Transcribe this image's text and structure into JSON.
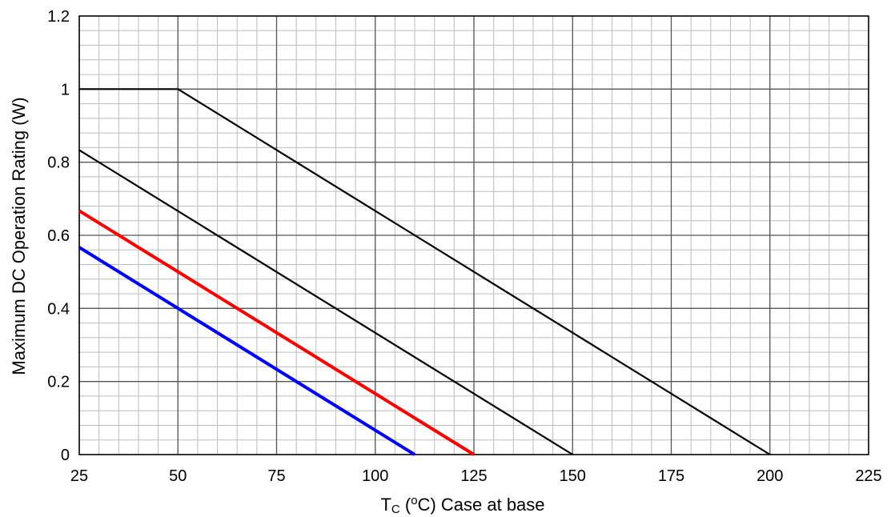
{
  "chart_data": {
    "type": "line",
    "xlabel": {
      "main": "T",
      "sub": "C",
      "open": " (",
      "sup": "o",
      "rest": "C) Case at base"
    },
    "ylabel": "Maximum DC Operation Rating (W)",
    "xlim": [
      25,
      225
    ],
    "ylim": [
      0,
      1.2
    ],
    "x_ticks": [
      25,
      50,
      75,
      100,
      125,
      150,
      175,
      200,
      225
    ],
    "y_ticks": [
      0,
      0.2,
      0.4,
      0.6,
      0.8,
      1,
      1.2
    ],
    "x_tick_labels": [
      "25",
      "50",
      "75",
      "100",
      "125",
      "150",
      "175",
      "200",
      "225"
    ],
    "y_tick_labels": [
      "0",
      "0.2",
      "0.4",
      "0.6",
      "0.8",
      "1",
      "1.2"
    ],
    "grid": true,
    "minor_grid_step_x": 5,
    "minor_grid_step_y": 0.04,
    "series": [
      {
        "color": "#000000",
        "points": [
          [
            25,
            1.0
          ],
          [
            50,
            1.0
          ],
          [
            200,
            0.0
          ]
        ]
      },
      {
        "color": "#000000",
        "points": [
          [
            25,
            0.833
          ],
          [
            150,
            0.0
          ]
        ]
      },
      {
        "color": "#ff0000",
        "points": [
          [
            25,
            0.667
          ],
          [
            125,
            0.0
          ]
        ]
      },
      {
        "color": "#0000ff",
        "points": [
          [
            25,
            0.567
          ],
          [
            110,
            0.0
          ]
        ]
      }
    ]
  }
}
